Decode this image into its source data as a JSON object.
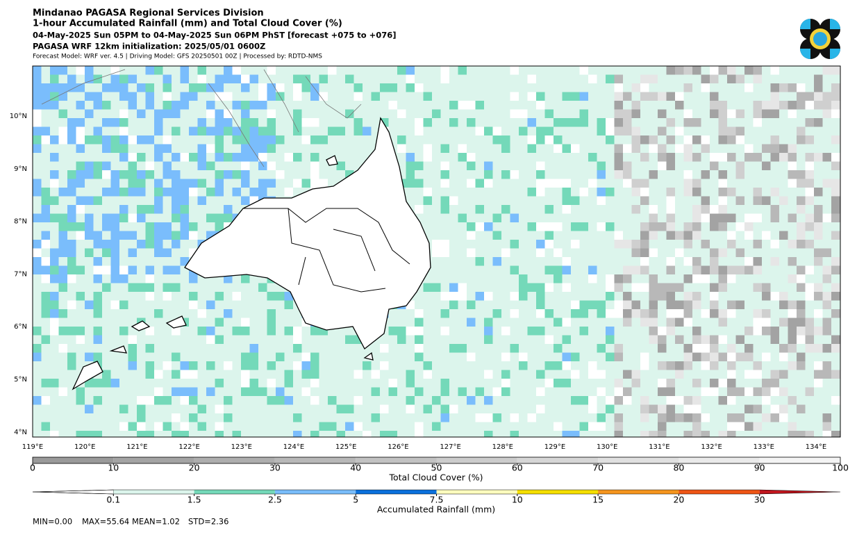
{
  "header": {
    "lines": [
      "Mindanao PAGASA Regional Services Division",
      "1-hour Accumulated Rainfall (mm) and Total Cloud Cover (%)",
      "04-May-2025 Sun 05PM to 04-May-2025 Sun 06PM PhST [forecast +075 to +076]",
      "PAGASA WRF 12km initialization: 2025/05/01 0600Z",
      "Forecast Model: WRF ver. 4.5 | Driving Model: GFS 20250501 00Z | Processed by: RDTD-NMS"
    ]
  },
  "map": {
    "lat_labels": [
      "10°N",
      "9°N",
      "8°N",
      "7°N",
      "6°N",
      "5°N",
      "4°N"
    ],
    "lon_labels": [
      "119°E",
      "120°E",
      "121°E",
      "122°E",
      "123°E",
      "124°E",
      "125°E",
      "126°E",
      "127°E",
      "128°E",
      "129°E",
      "130°E",
      "131°E",
      "132°E",
      "133°E",
      "134°E"
    ]
  },
  "cloud_colorbar": {
    "label": "Total Cloud Cover (%)",
    "lim": [
      0,
      100
    ],
    "ticks": [
      0,
      10,
      20,
      30,
      40,
      50,
      60,
      70,
      80,
      90,
      100
    ]
  },
  "rain_colorbar": {
    "label": "Accumulated Rainfall (mm)",
    "ticks": [
      0.1,
      1.5,
      2.5,
      5,
      7.5,
      10,
      15,
      20,
      30
    ],
    "colors": [
      "#ffffff",
      "#dcf5ec",
      "#74d9b9",
      "#79bdfa",
      "#0a70dc",
      "#fefcbe",
      "#f5df00",
      "#f5951e",
      "#ee5515",
      "#c0151d"
    ]
  },
  "stats": [
    "MIN=0.00",
    "MAX=55.64",
    "MEAN=1.02",
    "STD=2.36"
  ]
}
